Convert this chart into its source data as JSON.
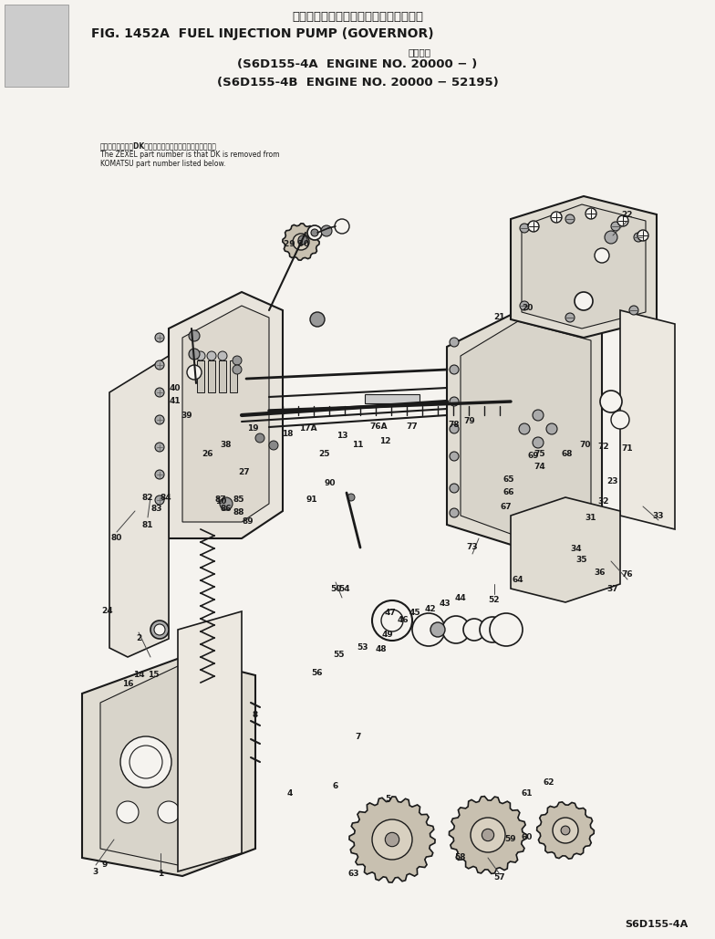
{
  "title_jp": "フェルインジェクションポンプ　ガバナ",
  "title_en": "FIG. 1452A  FUEL INJECTION PUMP (GOVERNOR)",
  "subtitle_jp": "適用号機",
  "subtitle1": "(S6D155-4A  ENGINE NO. 20000 − )",
  "subtitle2": "(S6D155-4B  ENGINE NO. 20000 − 52195)",
  "note_jp": "品番のメーカ指号DKを除いたものがゼクセルの品番です。",
  "note_en1": "The ZEXEL part number is that DK is removed from",
  "note_en2": "KOMATSU part number listed below.",
  "footer": "S6D155-4A",
  "bg_color": "#f5f3ef",
  "fg_color": "#1a1a1a"
}
